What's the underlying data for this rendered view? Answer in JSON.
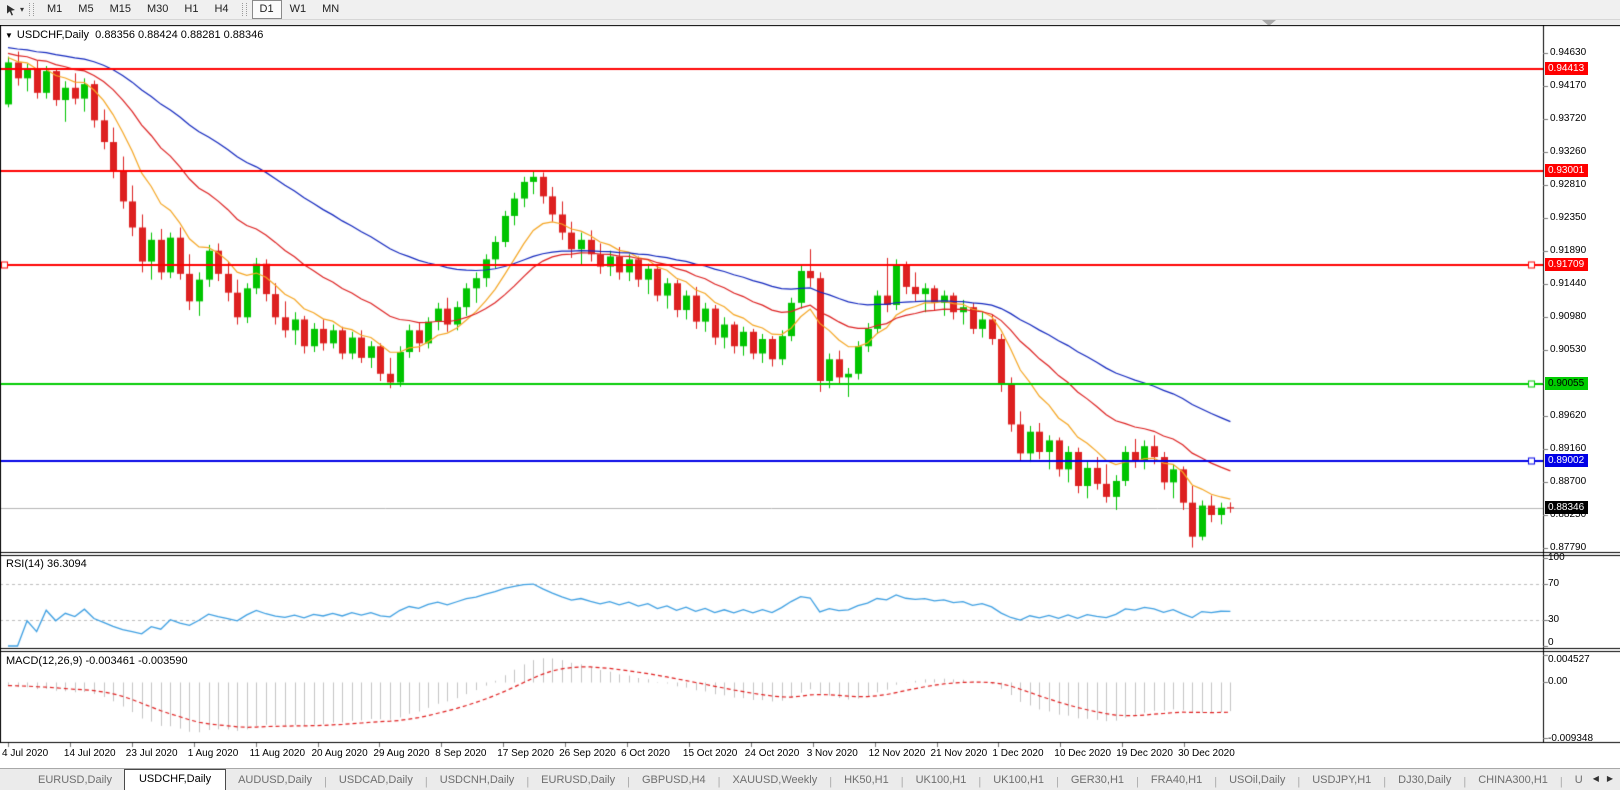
{
  "toolbar": {
    "chart_mode_icon": "cursor-arrow-icon",
    "dropdown_icon": "chevron-down",
    "timeframes": [
      {
        "label": "M1",
        "active": false
      },
      {
        "label": "M5",
        "active": false
      },
      {
        "label": "M15",
        "active": false
      },
      {
        "label": "M30",
        "active": false
      },
      {
        "label": "H1",
        "active": false
      },
      {
        "label": "H4",
        "active": false
      },
      {
        "label": "D1",
        "active": true
      },
      {
        "label": "W1",
        "active": false
      },
      {
        "label": "MN",
        "active": false
      }
    ]
  },
  "chart_window": {
    "title": {
      "collapse_icon": "triangle-down",
      "symbol": "USDCHF,Daily",
      "ohlc": "0.88356 0.88424 0.88281 0.88346"
    }
  },
  "chart_data": {
    "type": "candlestick",
    "symbol": "USDCHF",
    "timeframe": "Daily",
    "open": "0.88356",
    "high": "0.88424",
    "low": "0.88281",
    "close": "0.88346",
    "up_color": "#00C400",
    "down_color": "#DD2020",
    "candles": [
      [
        0.9392,
        0.9458,
        0.9388,
        0.945
      ],
      [
        0.945,
        0.9465,
        0.9418,
        0.9428
      ],
      [
        0.9428,
        0.9448,
        0.941,
        0.9442
      ],
      [
        0.9442,
        0.9452,
        0.94,
        0.9408
      ],
      [
        0.9408,
        0.9445,
        0.94,
        0.9438
      ],
      [
        0.9438,
        0.9442,
        0.939,
        0.9398
      ],
      [
        0.9398,
        0.9424,
        0.9368,
        0.9415
      ],
      [
        0.9415,
        0.9435,
        0.9392,
        0.94
      ],
      [
        0.94,
        0.9428,
        0.9382,
        0.942
      ],
      [
        0.942,
        0.9425,
        0.936,
        0.937
      ],
      [
        0.937,
        0.9385,
        0.933,
        0.934
      ],
      [
        0.934,
        0.936,
        0.929,
        0.93
      ],
      [
        0.93,
        0.932,
        0.9248,
        0.9258
      ],
      [
        0.9258,
        0.928,
        0.921,
        0.9222
      ],
      [
        0.9222,
        0.924,
        0.916,
        0.9175
      ],
      [
        0.9175,
        0.9215,
        0.915,
        0.9205
      ],
      [
        0.9205,
        0.922,
        0.915,
        0.916
      ],
      [
        0.916,
        0.9215,
        0.9152,
        0.9208
      ],
      [
        0.9208,
        0.9222,
        0.915,
        0.9158
      ],
      [
        0.9158,
        0.9185,
        0.9108,
        0.912
      ],
      [
        0.912,
        0.916,
        0.91,
        0.915
      ],
      [
        0.915,
        0.9198,
        0.914,
        0.919
      ],
      [
        0.919,
        0.92,
        0.9148,
        0.9158
      ],
      [
        0.9158,
        0.9175,
        0.912,
        0.9132
      ],
      [
        0.9132,
        0.915,
        0.9088,
        0.9098
      ],
      [
        0.9098,
        0.9145,
        0.909,
        0.9138
      ],
      [
        0.9138,
        0.918,
        0.913,
        0.9172
      ],
      [
        0.9172,
        0.9178,
        0.912,
        0.913
      ],
      [
        0.913,
        0.9145,
        0.9088,
        0.9098
      ],
      [
        0.9098,
        0.912,
        0.907,
        0.908
      ],
      [
        0.908,
        0.9105,
        0.906,
        0.9095
      ],
      [
        0.9095,
        0.91,
        0.9048,
        0.9058
      ],
      [
        0.9058,
        0.909,
        0.905,
        0.9082
      ],
      [
        0.9082,
        0.9095,
        0.9052,
        0.9062
      ],
      [
        0.9062,
        0.9088,
        0.9055,
        0.908
      ],
      [
        0.908,
        0.9085,
        0.904,
        0.9048
      ],
      [
        0.9048,
        0.9078,
        0.904,
        0.907
      ],
      [
        0.907,
        0.908,
        0.9035,
        0.9042
      ],
      [
        0.9042,
        0.9065,
        0.9028,
        0.9058
      ],
      [
        0.9058,
        0.9062,
        0.901,
        0.902
      ],
      [
        0.902,
        0.9042,
        0.9,
        0.9008
      ],
      [
        0.9008,
        0.9058,
        0.9002,
        0.905
      ],
      [
        0.905,
        0.9088,
        0.9042,
        0.908
      ],
      [
        0.908,
        0.909,
        0.905,
        0.9062
      ],
      [
        0.9062,
        0.9098,
        0.9055,
        0.9092
      ],
      [
        0.9092,
        0.9118,
        0.908,
        0.911
      ],
      [
        0.911,
        0.9125,
        0.9078,
        0.9088
      ],
      [
        0.9088,
        0.912,
        0.908,
        0.9112
      ],
      [
        0.9112,
        0.9145,
        0.91,
        0.9138
      ],
      [
        0.9138,
        0.916,
        0.9118,
        0.9152
      ],
      [
        0.9152,
        0.9185,
        0.914,
        0.9178
      ],
      [
        0.9178,
        0.921,
        0.9165,
        0.9202
      ],
      [
        0.9202,
        0.9245,
        0.9195,
        0.9238
      ],
      [
        0.9238,
        0.927,
        0.9225,
        0.9262
      ],
      [
        0.9262,
        0.9292,
        0.925,
        0.9285
      ],
      [
        0.9285,
        0.93,
        0.9268,
        0.9292
      ],
      [
        0.9292,
        0.9298,
        0.9255,
        0.9265
      ],
      [
        0.9265,
        0.9278,
        0.923,
        0.924
      ],
      [
        0.924,
        0.9258,
        0.9205,
        0.9215
      ],
      [
        0.9215,
        0.923,
        0.918,
        0.9192
      ],
      [
        0.9192,
        0.9215,
        0.917,
        0.9205
      ],
      [
        0.9205,
        0.9218,
        0.9175,
        0.9185
      ],
      [
        0.9185,
        0.92,
        0.9158,
        0.9168
      ],
      [
        0.9168,
        0.919,
        0.9155,
        0.9182
      ],
      [
        0.9182,
        0.9195,
        0.915,
        0.916
      ],
      [
        0.916,
        0.9185,
        0.9148,
        0.9178
      ],
      [
        0.9178,
        0.9182,
        0.914,
        0.915
      ],
      [
        0.915,
        0.9172,
        0.913,
        0.9165
      ],
      [
        0.9165,
        0.917,
        0.912,
        0.9128
      ],
      [
        0.9128,
        0.9152,
        0.911,
        0.9145
      ],
      [
        0.9145,
        0.915,
        0.9098,
        0.9108
      ],
      [
        0.9108,
        0.9135,
        0.9095,
        0.9128
      ],
      [
        0.9128,
        0.914,
        0.9082,
        0.9092
      ],
      [
        0.9092,
        0.9118,
        0.9078,
        0.911
      ],
      [
        0.911,
        0.9115,
        0.906,
        0.907
      ],
      [
        0.907,
        0.9098,
        0.9055,
        0.9088
      ],
      [
        0.9088,
        0.9092,
        0.9048,
        0.9058
      ],
      [
        0.9058,
        0.9085,
        0.9045,
        0.9078
      ],
      [
        0.9078,
        0.9082,
        0.904,
        0.9048
      ],
      [
        0.9048,
        0.9075,
        0.9035,
        0.9068
      ],
      [
        0.9068,
        0.9072,
        0.903,
        0.904
      ],
      [
        0.904,
        0.908,
        0.9032,
        0.9072
      ],
      [
        0.9072,
        0.9125,
        0.9065,
        0.9118
      ],
      [
        0.9118,
        0.917,
        0.911,
        0.9162
      ],
      [
        0.9162,
        0.9192,
        0.914,
        0.9152
      ],
      [
        0.9152,
        0.916,
        0.8995,
        0.901
      ],
      [
        0.901,
        0.9048,
        0.9,
        0.904
      ],
      [
        0.904,
        0.9052,
        0.9005,
        0.9015
      ],
      [
        0.9015,
        0.9028,
        0.8988,
        0.902
      ],
      [
        0.902,
        0.9065,
        0.9012,
        0.9058
      ],
      [
        0.9058,
        0.909,
        0.905,
        0.9082
      ],
      [
        0.9082,
        0.9135,
        0.9075,
        0.9128
      ],
      [
        0.9128,
        0.918,
        0.9105,
        0.9115
      ],
      [
        0.9115,
        0.9178,
        0.9108,
        0.917
      ],
      [
        0.917,
        0.9175,
        0.913,
        0.914
      ],
      [
        0.914,
        0.916,
        0.912,
        0.913
      ],
      [
        0.913,
        0.9145,
        0.9105,
        0.9138
      ],
      [
        0.9138,
        0.9142,
        0.9108,
        0.9118
      ],
      [
        0.9118,
        0.9135,
        0.91,
        0.9128
      ],
      [
        0.9128,
        0.9132,
        0.9095,
        0.9105
      ],
      [
        0.9105,
        0.9122,
        0.9088,
        0.9112
      ],
      [
        0.9112,
        0.9118,
        0.9075,
        0.9082
      ],
      [
        0.9082,
        0.9105,
        0.907,
        0.9095
      ],
      [
        0.9095,
        0.9102,
        0.906,
        0.9068
      ],
      [
        0.9068,
        0.9075,
        0.8995,
        0.9005
      ],
      [
        0.9005,
        0.9015,
        0.894,
        0.895
      ],
      [
        0.895,
        0.8968,
        0.89,
        0.891
      ],
      [
        0.891,
        0.8948,
        0.8898,
        0.894
      ],
      [
        0.894,
        0.8952,
        0.8902,
        0.8912
      ],
      [
        0.8912,
        0.8935,
        0.8888,
        0.8928
      ],
      [
        0.8928,
        0.8932,
        0.8878,
        0.8888
      ],
      [
        0.8888,
        0.892,
        0.887,
        0.8912
      ],
      [
        0.8912,
        0.8918,
        0.8855,
        0.8865
      ],
      [
        0.8865,
        0.8898,
        0.8848,
        0.889
      ],
      [
        0.889,
        0.8905,
        0.886,
        0.8868
      ],
      [
        0.8868,
        0.8895,
        0.8842,
        0.885
      ],
      [
        0.885,
        0.888,
        0.8832,
        0.8872
      ],
      [
        0.8872,
        0.892,
        0.8865,
        0.8912
      ],
      [
        0.8912,
        0.893,
        0.889,
        0.89
      ],
      [
        0.89,
        0.8928,
        0.8888,
        0.892
      ],
      [
        0.892,
        0.8935,
        0.8895,
        0.8905
      ],
      [
        0.8905,
        0.8912,
        0.886,
        0.887
      ],
      [
        0.887,
        0.8895,
        0.8848,
        0.8888
      ],
      [
        0.8888,
        0.8892,
        0.8832,
        0.8842
      ],
      [
        0.8842,
        0.8865,
        0.878,
        0.8795
      ],
      [
        0.8795,
        0.8845,
        0.879,
        0.8838
      ],
      [
        0.8838,
        0.8852,
        0.8815,
        0.8825
      ],
      [
        0.8825,
        0.8842,
        0.8812,
        0.8835
      ],
      [
        0.88356,
        0.88424,
        0.88281,
        0.88346
      ]
    ],
    "price_axis": {
      "ticks": [
        "0.94630",
        "0.94170",
        "0.93720",
        "0.93260",
        "0.92810",
        "0.92350",
        "0.91890",
        "0.91440",
        "0.90980",
        "0.90530",
        "0.89620",
        "0.89160",
        "0.88700",
        "0.88250",
        "0.87790"
      ]
    },
    "hlines": [
      {
        "value": 0.94413,
        "label": "0.94413",
        "color": "#FF0000",
        "text_color": "#FFFFFF",
        "handles": false
      },
      {
        "value": 0.93001,
        "label": "0.93001",
        "color": "#FF0000",
        "text_color": "#FFFFFF",
        "handles": false
      },
      {
        "value": 0.91709,
        "label": "0.91709",
        "color": "#FF0000",
        "text_color": "#FFFFFF",
        "handles": true
      },
      {
        "value": 0.90055,
        "label": "0.90055",
        "color": "#00CC00",
        "text_color": "#000000",
        "handles": true
      },
      {
        "value": 0.89002,
        "label": "0.89002",
        "color": "#0000E6",
        "text_color": "#FFFFFF",
        "handles": true
      }
    ],
    "current_price": {
      "value": 0.88346,
      "label": "0.88346",
      "line_color": "#B4B4B4",
      "bg": "#000000",
      "text_color": "#FFFFFF"
    },
    "moving_averages": [
      {
        "period": 9,
        "method": "ema",
        "color": "#F5A623",
        "name": "fast-ma"
      },
      {
        "period": 21,
        "method": "ema",
        "color": "#DD2020",
        "name": "medium-ma"
      },
      {
        "period": 45,
        "method": "ema",
        "color": "#1126BE",
        "name": "slow-ma"
      }
    ],
    "date_axis": [
      "4 Jul 2020",
      "14 Jul 2020",
      "23 Jul 2020",
      "1 Aug 2020",
      "11 Aug 2020",
      "20 Aug 2020",
      "29 Aug 2020",
      "8 Sep 2020",
      "17 Sep 2020",
      "26 Sep 2020",
      "6 Oct 2020",
      "15 Oct 2020",
      "24 Oct 2020",
      "3 Nov 2020",
      "12 Nov 2020",
      "21 Nov 2020",
      "1 Dec 2020",
      "10 Dec 2020",
      "19 Dec 2020",
      "30 Dec 2020"
    ],
    "indicators": {
      "rsi": {
        "label": "RSI(14) 36.3094",
        "period": 14,
        "value": 36.3094,
        "axis": [
          "100",
          "70",
          "30",
          "0"
        ],
        "levels": [
          70,
          30
        ],
        "color": "#3D9FE2",
        "level_color": "#BDBDBD"
      },
      "macd": {
        "label": "MACD(12,26,9) -0.003461 -0.003590",
        "fast": 12,
        "slow": 26,
        "signal_period": 9,
        "main": -0.003461,
        "signal": -0.00359,
        "axis": [
          "0.004527",
          "0.00",
          "-0.009348"
        ],
        "histogram_color": "#C4C4C4",
        "signal_color": "#E02020"
      }
    }
  },
  "tabs": {
    "items": [
      {
        "label": "EURUSD,Daily",
        "active": false
      },
      {
        "label": "USDCHF,Daily",
        "active": true
      },
      {
        "label": "AUDUSD,Daily",
        "active": false
      },
      {
        "label": "USDCAD,Daily",
        "active": false
      },
      {
        "label": "USDCNH,Daily",
        "active": false
      },
      {
        "label": "EURUSD,Daily",
        "active": false
      },
      {
        "label": "GBPUSD,H4",
        "active": false
      },
      {
        "label": "XAUUSD,Weekly",
        "active": false
      },
      {
        "label": "HK50,H1",
        "active": false
      },
      {
        "label": "UK100,H1",
        "active": false
      },
      {
        "label": "UK100,H1",
        "active": false
      },
      {
        "label": "GER30,H1",
        "active": false
      },
      {
        "label": "FRA40,H1",
        "active": false
      },
      {
        "label": "USOil,Daily",
        "active": false
      },
      {
        "label": "USDJPY,H1",
        "active": false
      },
      {
        "label": "DJ30,Daily",
        "active": false
      },
      {
        "label": "CHINA300,H1",
        "active": false
      },
      {
        "label": "U",
        "active": false,
        "partial": true
      }
    ],
    "scroll_left_icon": "◀",
    "scroll_right_icon": "▶"
  }
}
